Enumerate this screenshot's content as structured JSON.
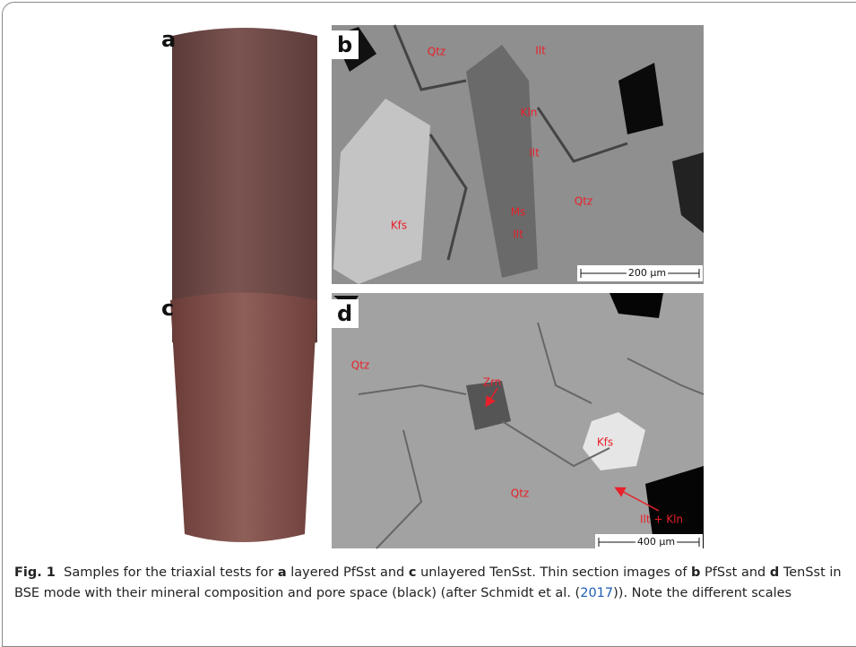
{
  "figure": {
    "panels": [
      {
        "label": "a"
      },
      {
        "label": "b",
        "annotations": [
          "Qtz",
          "Ilt",
          "Kln",
          "Ilt",
          "Qtz",
          "Ms",
          "Kfs",
          "Ilt"
        ],
        "scale_bar": "200 µm"
      },
      {
        "label": "c"
      },
      {
        "label": "d",
        "annotations": [
          "Qtz",
          "Zrn",
          "Kfs",
          "Qtz",
          "Ilt + Kln"
        ],
        "scale_bar": "400 µm"
      }
    ]
  },
  "caption": [
    {
      "text": "Fig. 1",
      "style": "bold"
    },
    {
      "text": "  Samples for the triaxial tests for "
    },
    {
      "text": "a",
      "style": "bold"
    },
    {
      "text": " layered PfSst and "
    },
    {
      "text": "c",
      "style": "bold"
    },
    {
      "text": " unlayered TenSst. Thin section images of "
    },
    {
      "text": "b",
      "style": "bold"
    },
    {
      "text": " PfSst and "
    },
    {
      "text": "d",
      "style": "bold"
    },
    {
      "text": " TenSst in BSE mode with their mineral composition and pore space (black) (after Schmidt et al. ("
    },
    {
      "text": "2017",
      "style": "link"
    },
    {
      "text": ")). Note the different scales"
    }
  ]
}
